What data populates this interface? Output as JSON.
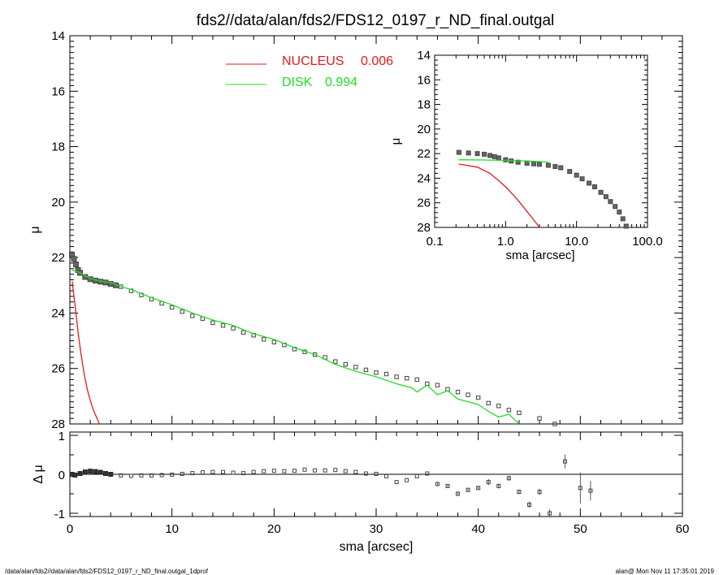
{
  "title": "fds2//data/alan/fds2/FDS12_0197_r_ND_final.outgal",
  "footer": {
    "left": "/data/alan/fds2//data/alan/fds2/FDS12_0197_r_ND_final.outgal_1dprof",
    "right": "alan@  Mon Nov 11 17:35:01 2019"
  },
  "legend": {
    "nucleus_label": "NUCLEUS",
    "nucleus_value": "0.006",
    "disk_label": "DISK",
    "disk_value": "0.994"
  },
  "colors": {
    "nucleus": "#e41a1c",
    "disk": "#22dd22",
    "data": "#555555",
    "axes": "#000000"
  },
  "chart_data": [
    {
      "type": "line",
      "panel": "main profile",
      "xlabel": "",
      "ylabel": "μ",
      "xlim": [
        0,
        60
      ],
      "ylim": [
        28,
        14
      ],
      "y_reversed": true,
      "xticks": [
        "0",
        "10",
        "20",
        "30",
        "40",
        "50",
        "60"
      ],
      "yticks": [
        "14",
        "16",
        "18",
        "20",
        "22",
        "24",
        "26",
        "28"
      ],
      "series": [
        {
          "name": "NUCLEUS",
          "x": [
            0.22,
            0.5,
            0.8,
            1.1,
            1.4,
            1.7,
            2.0,
            2.3,
            2.6,
            2.9
          ],
          "y": [
            22.85,
            23.7,
            24.7,
            25.5,
            26.2,
            26.75,
            27.15,
            27.5,
            27.75,
            28.0
          ]
        },
        {
          "name": "DISK",
          "x": [
            0.2,
            1,
            2,
            3,
            4,
            5,
            6,
            8,
            10,
            12,
            14,
            16,
            18,
            20,
            22,
            24,
            26,
            28,
            30,
            32,
            33.5,
            34,
            35,
            36,
            37,
            38,
            39,
            40,
            41,
            42,
            43,
            44
          ],
          "y": [
            22.45,
            22.55,
            22.75,
            22.85,
            22.9,
            23.05,
            23.15,
            23.45,
            23.7,
            24.0,
            24.25,
            24.45,
            24.75,
            24.95,
            25.25,
            25.5,
            25.85,
            26.1,
            26.3,
            26.55,
            26.7,
            26.85,
            26.6,
            26.95,
            26.8,
            27.1,
            27.2,
            27.3,
            27.55,
            27.75,
            27.65,
            28.0
          ]
        },
        {
          "name": "",
          "style": "markers",
          "x": [
            0.2,
            0.4,
            0.6,
            0.8,
            1.0,
            1.5,
            2.0,
            2.5,
            3.0,
            3.5,
            4.0,
            4.5,
            5,
            6,
            7,
            8,
            9,
            10,
            11,
            12,
            13,
            14,
            15,
            16,
            17,
            18,
            19,
            20,
            21,
            22,
            23,
            24,
            25,
            26,
            27,
            28,
            29,
            30,
            31,
            32,
            33,
            34,
            35,
            36,
            37,
            38,
            39,
            40,
            41,
            42,
            43,
            44,
            46,
            47.5
          ],
          "y": [
            21.9,
            22.05,
            22.25,
            22.45,
            22.55,
            22.7,
            22.78,
            22.83,
            22.87,
            22.9,
            22.95,
            23.0,
            23.05,
            23.2,
            23.35,
            23.5,
            23.65,
            23.8,
            23.95,
            24.1,
            24.2,
            24.35,
            24.45,
            24.55,
            24.7,
            24.8,
            24.95,
            25.05,
            25.15,
            25.3,
            25.4,
            25.5,
            25.6,
            25.75,
            25.85,
            25.95,
            26.05,
            26.15,
            26.2,
            26.3,
            26.35,
            26.4,
            26.55,
            26.6,
            26.75,
            26.85,
            26.95,
            27.05,
            27.25,
            27.35,
            27.5,
            27.6,
            27.8,
            28.0
          ]
        }
      ]
    },
    {
      "type": "line",
      "panel": "inset log profile",
      "xlabel": "sma [arcsec]",
      "ylabel": "μ",
      "xscale": "log",
      "xlim": [
        0.1,
        100
      ],
      "ylim": [
        28,
        14
      ],
      "y_reversed": true,
      "xticks": [
        "0.1",
        "1.0",
        "10.0",
        "100.0"
      ],
      "yticks": [
        "14",
        "16",
        "18",
        "20",
        "22",
        "24",
        "26",
        "28"
      ],
      "series": [
        {
          "name": "NUCLEUS",
          "x": [
            0.22,
            0.4,
            0.6,
            0.8,
            1.0,
            1.3,
            1.6,
            2.0,
            2.5,
            3.0
          ],
          "y": [
            22.85,
            23.1,
            23.6,
            24.2,
            24.7,
            25.4,
            26.0,
            26.7,
            27.4,
            28.0
          ]
        },
        {
          "name": "DISK",
          "x": [
            0.22,
            0.5,
            1.0,
            2.0,
            3.0,
            4.0
          ],
          "y": [
            22.5,
            22.52,
            22.55,
            22.6,
            22.65,
            22.7
          ]
        },
        {
          "name": "",
          "style": "markers",
          "x": [
            0.22,
            0.3,
            0.4,
            0.5,
            0.6,
            0.7,
            0.8,
            1.0,
            1.2,
            1.5,
            2.0,
            2.5,
            3.0,
            4.0,
            5.0,
            6.0,
            8.0,
            10.0,
            12.0,
            15.0,
            18.0,
            22.0,
            26.0,
            30.0,
            35.0,
            40.0,
            45.0,
            50.0
          ],
          "y": [
            21.9,
            21.95,
            22.0,
            22.05,
            22.15,
            22.25,
            22.35,
            22.5,
            22.6,
            22.7,
            22.78,
            22.83,
            22.87,
            22.95,
            23.05,
            23.15,
            23.45,
            23.75,
            24.05,
            24.4,
            24.7,
            25.15,
            25.5,
            25.9,
            26.3,
            26.75,
            27.3,
            27.9
          ]
        }
      ]
    },
    {
      "type": "scatter",
      "panel": "residuals",
      "xlabel": "sma [arcsec]",
      "ylabel": "Δ μ",
      "xlim": [
        0,
        60
      ],
      "ylim": [
        -1,
        1
      ],
      "xticks": [
        "0",
        "10",
        "20",
        "30",
        "40",
        "50",
        "60"
      ],
      "yticks": [
        "1",
        "0",
        "-1"
      ],
      "x": [
        0.2,
        0.5,
        1,
        1.5,
        2,
        2.5,
        3,
        3.5,
        4,
        5,
        6,
        7,
        8,
        9,
        10,
        11,
        12,
        13,
        14,
        15,
        16,
        17,
        18,
        19,
        20,
        21,
        22,
        23,
        24,
        25,
        26,
        27,
        28,
        29,
        30,
        31,
        32,
        33,
        34,
        35,
        36,
        37,
        38,
        39,
        40,
        41,
        42,
        43,
        44,
        45,
        46,
        47,
        48.5,
        50,
        51
      ],
      "y": [
        0.0,
        -0.02,
        0.02,
        0.06,
        0.08,
        0.07,
        0.05,
        0.02,
        0.0,
        -0.03,
        -0.04,
        -0.03,
        -0.03,
        -0.02,
        -0.01,
        0.01,
        0.03,
        0.05,
        0.06,
        0.06,
        0.04,
        0.03,
        0.06,
        0.08,
        0.09,
        0.08,
        0.09,
        0.12,
        0.1,
        0.1,
        0.11,
        0.08,
        0.06,
        0.02,
        0.01,
        -0.05,
        -0.2,
        -0.15,
        -0.05,
        0.02,
        -0.25,
        -0.3,
        -0.5,
        -0.4,
        -0.35,
        -0.2,
        -0.3,
        -0.1,
        -0.45,
        -0.78,
        -0.45,
        -1.0,
        0.33,
        -0.35,
        -0.42
      ],
      "err": [
        0,
        0,
        0,
        0,
        0,
        0,
        0,
        0,
        0,
        0,
        0,
        0,
        0,
        0,
        0,
        0,
        0,
        0,
        0,
        0,
        0,
        0,
        0,
        0,
        0,
        0,
        0,
        0,
        0,
        0,
        0,
        0,
        0,
        0,
        0,
        0,
        0,
        0,
        0,
        0,
        0.04,
        0.04,
        0.05,
        0.05,
        0.05,
        0.08,
        0.06,
        0.06,
        0.06,
        0.08,
        0.08,
        0.1,
        0.18,
        0.4,
        0.25
      ],
      "reference_line": 0
    }
  ]
}
